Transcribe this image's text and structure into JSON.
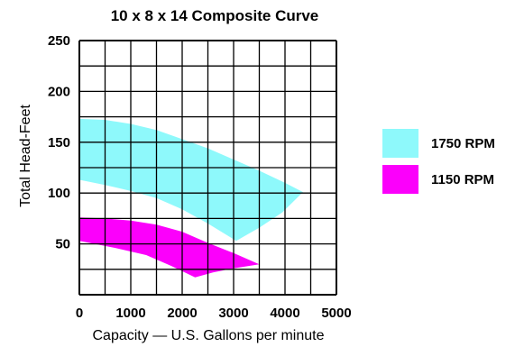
{
  "chart_data": {
    "type": "area",
    "title": "10 x 8 x 14  Composite Curve",
    "xlabel": "Capacity — U.S. Gallons per minute",
    "ylabel": "Total Head-Feet",
    "xlim": [
      0,
      5000
    ],
    "ylim": [
      0,
      250
    ],
    "x_ticks": [
      "0",
      "1000",
      "2000",
      "3000",
      "4000",
      "5000"
    ],
    "y_ticks": [
      "50",
      "100",
      "150",
      "200",
      "250"
    ],
    "grid": true,
    "legend_position": "right",
    "series": [
      {
        "name": "1750 RPM",
        "color": "#8ef9fb",
        "upper": [
          [
            0,
            173
          ],
          [
            500,
            172
          ],
          [
            1000,
            168
          ],
          [
            1500,
            162
          ],
          [
            2000,
            153
          ],
          [
            2500,
            144
          ],
          [
            3000,
            133
          ],
          [
            3500,
            122
          ],
          [
            4000,
            110
          ],
          [
            4350,
            101
          ]
        ],
        "lower": [
          [
            4350,
            101
          ],
          [
            3950,
            81
          ],
          [
            3500,
            66
          ],
          [
            3050,
            53
          ],
          [
            2500,
            70
          ],
          [
            2000,
            84
          ],
          [
            1500,
            95
          ],
          [
            1000,
            102
          ],
          [
            500,
            108
          ],
          [
            0,
            113
          ]
        ]
      },
      {
        "name": "1150 RPM",
        "color": "#fb00fb",
        "upper": [
          [
            0,
            76
          ],
          [
            500,
            75
          ],
          [
            1000,
            73
          ],
          [
            1500,
            69
          ],
          [
            2000,
            62
          ],
          [
            2500,
            51
          ],
          [
            3000,
            41
          ],
          [
            3500,
            30
          ]
        ],
        "lower": [
          [
            3500,
            30
          ],
          [
            3000,
            26
          ],
          [
            2600,
            22
          ],
          [
            2250,
            17
          ],
          [
            1800,
            28
          ],
          [
            1300,
            39
          ],
          [
            700,
            46
          ],
          [
            0,
            53
          ]
        ]
      }
    ]
  }
}
